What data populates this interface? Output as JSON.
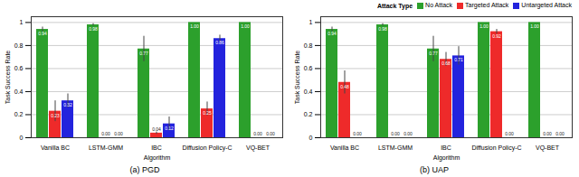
{
  "chart_data": [
    {
      "type": "bar",
      "title": "(a) PGD",
      "x_label": "Algorithm",
      "y_label": "Task Success Rate",
      "categories": [
        "Vanilla BC",
        "LSTM-GMM",
        "IBC",
        "Diffusion Policy-C",
        "VQ-BET"
      ],
      "series": [
        {
          "name": "No Attack",
          "color": "#2ca02c",
          "values": [
            0.94,
            0.98,
            0.77,
            1.0,
            1.0
          ],
          "value_labels": [
            "0.94",
            "0.98",
            "0.77",
            "1.00",
            "1.00"
          ],
          "errors": [
            0.02,
            0.01,
            0.11,
            0,
            0
          ]
        },
        {
          "name": "Targeted Attack",
          "color": "#ee2a2a",
          "values": [
            0.23,
            0.0,
            0.04,
            0.25,
            0.0
          ],
          "value_labels": [
            "0.23",
            "0.00",
            "0.04",
            "0.25",
            "0.00"
          ],
          "errors": [
            0.09,
            0,
            0.01,
            0.06,
            0
          ]
        },
        {
          "name": "Untargeted Attack",
          "color": "#2323dd",
          "values": [
            0.32,
            0.0,
            0.12,
            0.86,
            0.0
          ],
          "value_labels": [
            "0.32",
            "0.00",
            "0.12",
            "0.86",
            "0.00"
          ],
          "errors": [
            0.06,
            0,
            0.06,
            0.03,
            0
          ]
        }
      ],
      "ylim": [
        0,
        1.05
      ],
      "yticks": [
        0,
        0.2,
        0.4,
        0.6,
        0.8,
        1
      ],
      "grid": true,
      "data_labels": true
    },
    {
      "type": "bar",
      "title": "(b) UAP",
      "x_label": "Algorithm",
      "y_label": "Task Success Rate",
      "categories": [
        "Vanilla BC",
        "LSTM-GMM",
        "IBC",
        "Diffusion Policy-C",
        "VQ-BET"
      ],
      "series": [
        {
          "name": "No Attack",
          "color": "#2ca02c",
          "values": [
            0.94,
            0.98,
            0.77,
            1.0,
            1.0
          ],
          "value_labels": [
            "0.94",
            "0.98",
            "0.77",
            "1.00",
            "1.00"
          ],
          "errors": [
            0.02,
            0.01,
            0.11,
            0,
            0
          ]
        },
        {
          "name": "Targeted Attack",
          "color": "#ee2a2a",
          "values": [
            0.48,
            0.0,
            0.68,
            0.92,
            0.0
          ],
          "value_labels": [
            "0.48",
            "0.00",
            "0.68",
            "0.92",
            "0.00"
          ],
          "errors": [
            0.1,
            0,
            0.06,
            0.02,
            0
          ]
        },
        {
          "name": "Untargeted Attack",
          "color": "#2323dd",
          "values": [
            0.0,
            0.0,
            0.71,
            0.0,
            0.0
          ],
          "value_labels": [
            "0.00",
            "0.00",
            "0.71",
            "0.00",
            "0.00"
          ],
          "errors": [
            0,
            0,
            0.08,
            0,
            0
          ]
        }
      ],
      "ylim": [
        0,
        1.05
      ],
      "yticks": [
        0,
        0.2,
        0.4,
        0.6,
        0.8,
        1
      ],
      "grid": true,
      "data_labels": true,
      "legend": "upper right",
      "legend_title": "Attack Type"
    }
  ]
}
